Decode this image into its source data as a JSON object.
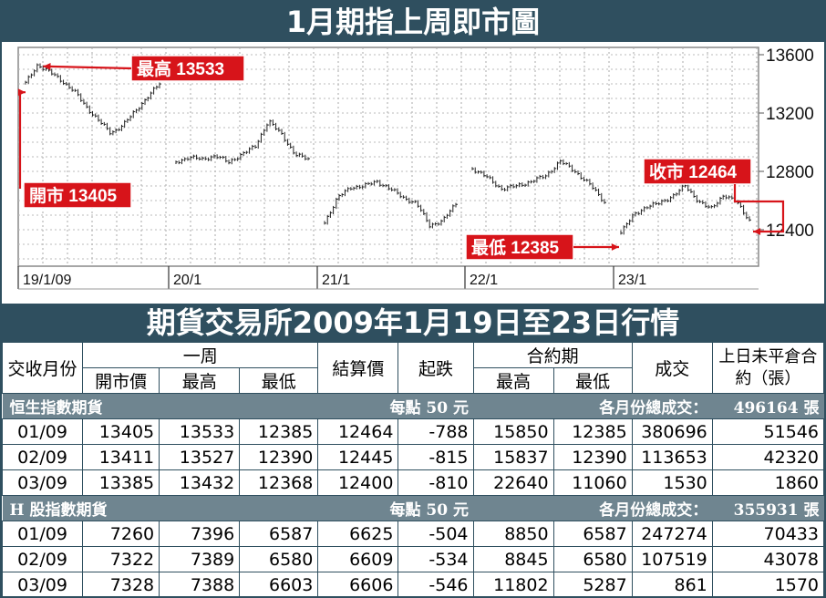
{
  "chart_title": "1月期指上周即市圖",
  "table_title": "期貨交易所2009年1月19日至23日行情",
  "chart_data": {
    "type": "candlestick",
    "y_ticks": [
      "13600",
      "13200",
      "12800",
      "12400"
    ],
    "ylim": [
      12150,
      13650
    ],
    "x_labels": [
      "19/1/09",
      "20/1",
      "21/1",
      "22/1",
      "23/1"
    ],
    "annotations": {
      "high": "最高 13533",
      "open": "開市 13405",
      "low": "最低 12385",
      "close": "收市 12464"
    },
    "values": {
      "open": 13405,
      "high": 13533,
      "low": 12385,
      "close": 12464
    },
    "days": [
      {
        "label": "19/1/09",
        "path": [
          13405,
          13533,
          13480,
          13420,
          13350,
          13240,
          13150,
          13060,
          13120,
          13210,
          13310,
          13400
        ]
      },
      {
        "label": "20/1",
        "path": [
          12860,
          12900,
          12880,
          12910,
          12860,
          12920,
          12970,
          13150,
          13050,
          12920,
          12880
        ]
      },
      {
        "label": "21/1",
        "path": [
          12450,
          12620,
          12690,
          12700,
          12730,
          12680,
          12620,
          12580,
          12430,
          12460,
          12580
        ]
      },
      {
        "label": "22/1",
        "path": [
          12820,
          12760,
          12680,
          12700,
          12730,
          12770,
          12870,
          12800,
          12710,
          12590
        ]
      },
      {
        "label": "23/1",
        "path": [
          12385,
          12500,
          12560,
          12580,
          12630,
          12700,
          12600,
          12540,
          12640,
          12590,
          12464
        ]
      }
    ]
  },
  "table": {
    "headers": {
      "month": "交收月份",
      "week": "一周",
      "open": "開市價",
      "high": "最高",
      "low": "最低",
      "settle": "結算價",
      "change": "起跌",
      "contract": "合約期",
      "c_high": "最高",
      "c_low": "最低",
      "volume": "成交",
      "oi": "上日未平倉合約（張）"
    },
    "sections": [
      {
        "name": "恒生指數期貨",
        "per_point": "每點 50 元",
        "total_label": "各月份總成交：",
        "total": "496164 張",
        "rows": [
          [
            "01/09",
            "13405",
            "13533",
            "12385",
            "12464",
            "-788",
            "15850",
            "12385",
            "380696",
            "51546"
          ],
          [
            "02/09",
            "13411",
            "13527",
            "12390",
            "12445",
            "-815",
            "15837",
            "12390",
            "113653",
            "42320"
          ],
          [
            "03/09",
            "13385",
            "13432",
            "12368",
            "12400",
            "-810",
            "22640",
            "11060",
            "1530",
            "1860"
          ]
        ]
      },
      {
        "name": "H 股指數期貨",
        "per_point": "每點 50 元",
        "total_label": "各月份總成交：",
        "total": "355931 張",
        "rows": [
          [
            "01/09",
            "7260",
            "7396",
            "6587",
            "6625",
            "-504",
            "8850",
            "6587",
            "247274",
            "70433"
          ],
          [
            "02/09",
            "7322",
            "7389",
            "6580",
            "6609",
            "-534",
            "8845",
            "6580",
            "107519",
            "43078"
          ],
          [
            "03/09",
            "7328",
            "7388",
            "6603",
            "6606",
            "-546",
            "11802",
            "5287",
            "861",
            "1570"
          ]
        ]
      }
    ]
  }
}
